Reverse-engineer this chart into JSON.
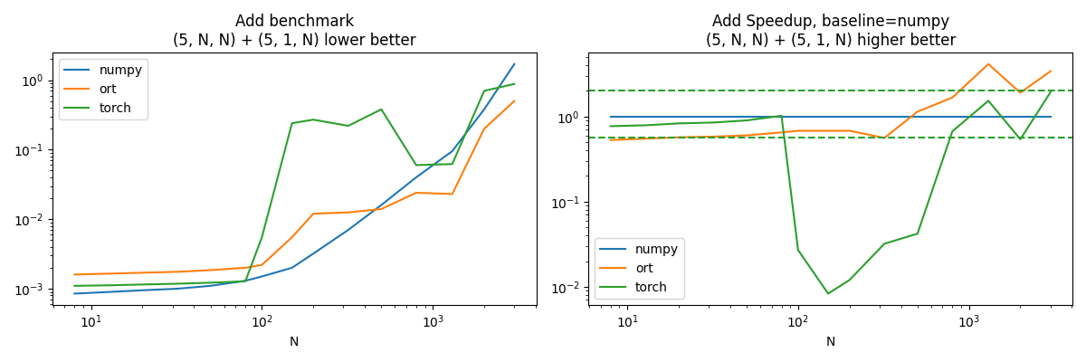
{
  "title1": "Add benchmark\n(5, N, N) + (5, 1, N) lower better",
  "title2": "Add Speedup, baseline=numpy\n(5, N, N) + (5, 1, N) higher better",
  "xlabel": "N",
  "N": [
    8,
    13,
    20,
    32,
    50,
    80,
    100,
    150,
    200,
    320,
    500,
    800,
    1300,
    2000,
    3000
  ],
  "bench_numpy": [
    0.00085,
    0.0009,
    0.00095,
    0.001,
    0.0011,
    0.0013,
    0.0015,
    0.002,
    0.0032,
    0.007,
    0.016,
    0.04,
    0.095,
    0.38,
    1.7
  ],
  "bench_ort": [
    0.0016,
    0.00165,
    0.0017,
    0.00175,
    0.00185,
    0.002,
    0.0022,
    0.0055,
    0.012,
    0.0125,
    0.014,
    0.024,
    0.023,
    0.2,
    0.5
  ],
  "bench_torch": [
    0.0011,
    0.00112,
    0.00115,
    0.00118,
    0.00122,
    0.00128,
    0.0055,
    0.24,
    0.27,
    0.22,
    0.38,
    0.06,
    0.062,
    0.7,
    0.88
  ],
  "speed_numpy": [
    1.0,
    1.0,
    1.0,
    1.0,
    1.0,
    1.0,
    1.0,
    1.0,
    1.0,
    1.0,
    1.0,
    1.0,
    1.0,
    1.0,
    1.0
  ],
  "speed_ort": [
    0.53,
    0.55,
    0.57,
    0.58,
    0.6,
    0.65,
    0.68,
    0.68,
    0.68,
    0.56,
    1.14,
    1.67,
    4.13,
    1.9,
    3.4
  ],
  "speed_torch": [
    0.77,
    0.79,
    0.83,
    0.85,
    0.9,
    1.02,
    0.027,
    0.0083,
    0.012,
    0.032,
    0.042,
    0.67,
    1.53,
    0.54,
    1.93
  ],
  "dashed_upper": 2.0,
  "dashed_lower": 0.56,
  "color_numpy": "#1f77b4",
  "color_ort": "#ff7f0e",
  "color_torch": "#2ca02c",
  "legend1_loc": "upper left",
  "legend2_loc": "lower left"
}
